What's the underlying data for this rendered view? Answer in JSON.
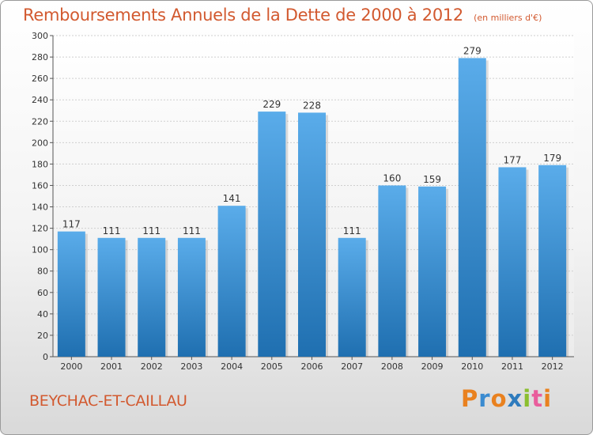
{
  "header": {
    "title": "Remboursements Annuels de la Dette de 2000 à 2012",
    "unit": "(en milliers d'€)"
  },
  "footer": {
    "commune": "BEYCHAC-ET-CAILLAU",
    "logo_letters": [
      "P",
      "r",
      "o",
      "x",
      "i",
      "t",
      "i"
    ]
  },
  "colors": {
    "accent_text": "#d2592f",
    "bar_top": "#5aacea",
    "bar_bottom": "#1f6fb0",
    "logo": [
      "#e9811f",
      "#3a8bd0",
      "#e9811f",
      "#2e7bbd",
      "#8bbf2f",
      "#e95d9c",
      "#e9811f"
    ]
  },
  "chart_data": {
    "type": "bar",
    "categories": [
      "2000",
      "2001",
      "2002",
      "2003",
      "2004",
      "2005",
      "2006",
      "2007",
      "2008",
      "2009",
      "2010",
      "2011",
      "2012"
    ],
    "values": [
      117,
      111,
      111,
      111,
      141,
      229,
      228,
      111,
      160,
      159,
      279,
      177,
      179
    ],
    "title": "Remboursements Annuels de la Dette de 2000 à 2012",
    "ylim": [
      0,
      300
    ],
    "yticks": [
      0,
      20,
      40,
      60,
      80,
      100,
      120,
      140,
      160,
      180,
      200,
      220,
      240,
      260,
      280,
      300
    ],
    "grid": true,
    "legend": "none"
  }
}
